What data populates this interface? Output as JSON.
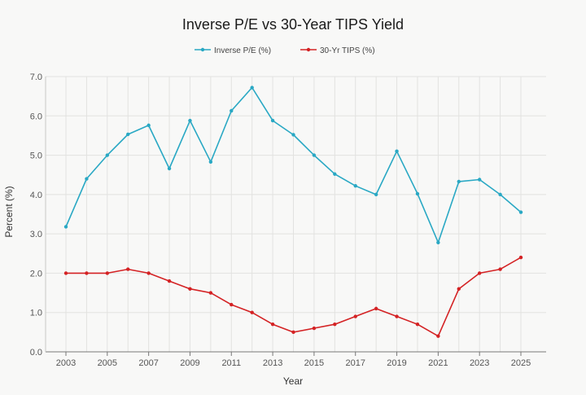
{
  "chart_data": {
    "type": "line",
    "title": "Inverse P/E vs 30-Year TIPS Yield",
    "xlabel": "Year",
    "ylabel": "Percent (%)",
    "x": [
      2003,
      2004,
      2005,
      2006,
      2007,
      2008,
      2009,
      2010,
      2011,
      2012,
      2013,
      2014,
      2015,
      2016,
      2017,
      2018,
      2019,
      2020,
      2021,
      2022,
      2023,
      2024,
      2025
    ],
    "x_ticks": [
      2003,
      2005,
      2007,
      2009,
      2011,
      2013,
      2015,
      2017,
      2019,
      2021,
      2023,
      2025
    ],
    "xlim": [
      2003,
      2025
    ],
    "y_ticks": [
      "0.0",
      "1.0",
      "2.0",
      "3.0",
      "4.0",
      "5.0",
      "6.0",
      "7.0"
    ],
    "ylim": [
      0,
      7
    ],
    "grid": true,
    "legend_position": "top-center",
    "series": [
      {
        "name": "Inverse P/E (%)",
        "color": "#29a8c4",
        "values": [
          3.18,
          4.4,
          5.0,
          5.53,
          5.76,
          4.66,
          5.88,
          4.83,
          6.13,
          6.72,
          5.88,
          5.52,
          5.0,
          4.52,
          4.22,
          4.0,
          5.1,
          4.02,
          2.78,
          4.33,
          4.38,
          4.0,
          3.55
        ]
      },
      {
        "name": "30-Yr TIPS (%)",
        "color": "#d42224",
        "values": [
          2.0,
          2.0,
          2.0,
          2.1,
          2.0,
          1.8,
          1.6,
          1.5,
          1.2,
          1.0,
          0.7,
          0.5,
          0.6,
          0.7,
          0.9,
          1.1,
          0.9,
          0.7,
          0.4,
          1.6,
          2.0,
          2.1,
          2.4
        ]
      }
    ]
  }
}
